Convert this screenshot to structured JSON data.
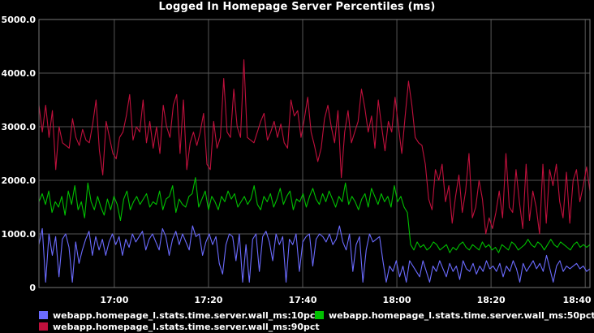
{
  "chart_data": {
    "type": "line",
    "title": "Logged In Homepage Server Percentiles (ms)",
    "xlabel": "",
    "ylabel": "",
    "x_ticks": [
      "17:00",
      "17:20",
      "17:40",
      "18:00",
      "18:20",
      "18:40"
    ],
    "x_range": [
      "16:44",
      "18:41"
    ],
    "y_ticks": [
      "0",
      "1000.0",
      "2000.0",
      "3000.0",
      "4000.0",
      "5000.0"
    ],
    "ylim": [
      0,
      5000
    ],
    "grid": true,
    "legend_position": "bottom",
    "series": [
      {
        "name": "webapp.homepage_l.stats.time.server.wall_ms:10pct",
        "color": "#6b6bff",
        "time_window": [
          "16:44",
          "18:41"
        ],
        "values": [
          800,
          1100,
          100,
          1000,
          600,
          950,
          200,
          900,
          1000,
          750,
          100,
          850,
          450,
          700,
          900,
          1050,
          600,
          950,
          700,
          900,
          600,
          850,
          1000,
          800,
          950,
          600,
          900,
          750,
          1000,
          850,
          950,
          1050,
          700,
          900,
          1000,
          850,
          700,
          1100,
          950,
          600,
          900,
          1050,
          800,
          1000,
          850,
          700,
          1150,
          950,
          1000,
          600,
          850,
          1000,
          800,
          950,
          450,
          250,
          800,
          1000,
          950,
          500,
          1000,
          100,
          800,
          100,
          900,
          1000,
          300,
          950,
          1050,
          850,
          500,
          1000,
          800,
          950,
          100,
          900,
          800,
          1000,
          300,
          850,
          950,
          1000,
          400,
          900,
          1000,
          950,
          850,
          1000,
          800,
          900,
          1150,
          850,
          700,
          1000,
          300,
          800,
          950,
          100,
          700,
          1000,
          850,
          900,
          950,
          500,
          100,
          400,
          300,
          500,
          200,
          400,
          100,
          500,
          400,
          300,
          200,
          500,
          300,
          100,
          400,
          300,
          500,
          350,
          200,
          450,
          300,
          400,
          150,
          500,
          350,
          300,
          450,
          250,
          400,
          300,
          500,
          350,
          400,
          300,
          450,
          200,
          400,
          300,
          500,
          350,
          100,
          450,
          300,
          400,
          500,
          350,
          450,
          300,
          600,
          350,
          100,
          400,
          500,
          300,
          400,
          350,
          400,
          450,
          350,
          400,
          300,
          350
        ]
      },
      {
        "name": "webapp.homepage_l.stats.time.server.wall_ms:50pct",
        "color": "#00c000",
        "time_window": [
          "16:44",
          "18:41"
        ],
        "values": [
          1600,
          1750,
          1550,
          1800,
          1400,
          1600,
          1500,
          1700,
          1350,
          1800,
          1550,
          1900,
          1450,
          1600,
          1300,
          1950,
          1600,
          1450,
          1700,
          1500,
          1350,
          1650,
          1450,
          1700,
          1550,
          1250,
          1650,
          1800,
          1450,
          1600,
          1700,
          1550,
          1650,
          1750,
          1500,
          1600,
          1550,
          1800,
          1450,
          1650,
          1700,
          1900,
          1400,
          1650,
          1550,
          1500,
          1700,
          1750,
          2050,
          1500,
          1650,
          1800,
          1450,
          1700,
          1600,
          1450,
          1700,
          1600,
          1800,
          1650,
          1750,
          1500,
          1600,
          1700,
          1550,
          1650,
          1900,
          1550,
          1450,
          1700,
          1600,
          1750,
          1500,
          1650,
          1850,
          1550,
          1700,
          1800,
          1450,
          1650,
          1600,
          1750,
          1500,
          1700,
          1850,
          1650,
          1550,
          1750,
          1600,
          1800,
          1650,
          1500,
          1700,
          1600,
          1950,
          1550,
          1700,
          1600,
          1450,
          1650,
          1750,
          1500,
          1850,
          1700,
          1550,
          1750,
          1600,
          1700,
          1500,
          1900,
          1600,
          1700,
          1500,
          1400,
          800,
          700,
          850,
          750,
          800,
          700,
          750,
          850,
          800,
          700,
          750,
          800,
          650,
          750,
          700,
          800,
          850,
          750,
          700,
          800,
          750,
          700,
          850,
          750,
          800,
          700,
          750,
          650,
          800,
          750,
          700,
          850,
          800,
          700,
          750,
          800,
          900,
          800,
          750,
          850,
          800,
          700,
          800,
          900,
          800,
          750,
          850,
          800,
          750,
          700,
          800,
          850,
          750,
          800,
          750,
          800
        ]
      },
      {
        "name": "webapp.homepage_l.stats.time.server.wall_ms:90pct",
        "color": "#c0103c",
        "time_window": [
          "16:44",
          "18:41"
        ],
        "values": [
          3400,
          2900,
          3400,
          2800,
          3300,
          2200,
          3000,
          2700,
          2650,
          2600,
          3150,
          2800,
          2650,
          2950,
          2750,
          2700,
          3050,
          3500,
          2550,
          2100,
          3100,
          2800,
          2500,
          2400,
          2800,
          2900,
          3200,
          3600,
          2750,
          3000,
          2900,
          3500,
          2700,
          3100,
          2600,
          3000,
          2500,
          3400,
          3000,
          2800,
          3400,
          3600,
          2500,
          3500,
          2200,
          2700,
          2900,
          2650,
          2900,
          3250,
          2300,
          2200,
          3100,
          2600,
          2800,
          3900,
          2900,
          2800,
          3700,
          3000,
          2800,
          4250,
          2800,
          2750,
          2700,
          2900,
          3100,
          3250,
          2750,
          2900,
          3100,
          2800,
          3050,
          2700,
          2600,
          3500,
          3200,
          3300,
          2800,
          3150,
          3550,
          2900,
          2650,
          2350,
          2600,
          3150,
          3400,
          3000,
          2700,
          3300,
          2050,
          2900,
          3300,
          2700,
          2900,
          3100,
          3700,
          3350,
          2900,
          3200,
          2600,
          3500,
          3000,
          2550,
          3100,
          2900,
          3550,
          3000,
          2500,
          3200,
          3850,
          3400,
          2800,
          2700,
          2650,
          2300,
          1650,
          1450,
          2200,
          2000,
          2300,
          1600,
          1900,
          1200,
          1700,
          2100,
          1400,
          1800,
          2500,
          1300,
          1500,
          2000,
          1650,
          1000,
          1300,
          1100,
          1400,
          1800,
          1300,
          2500,
          1500,
          1400,
          2200,
          1600,
          1100,
          2300,
          1250,
          1800,
          1500,
          1000,
          2300,
          1200,
          2200,
          1900,
          2300,
          1600,
          1300,
          2150,
          1200,
          2000,
          2200,
          1600,
          1900,
          2250,
          1800
        ]
      }
    ]
  }
}
